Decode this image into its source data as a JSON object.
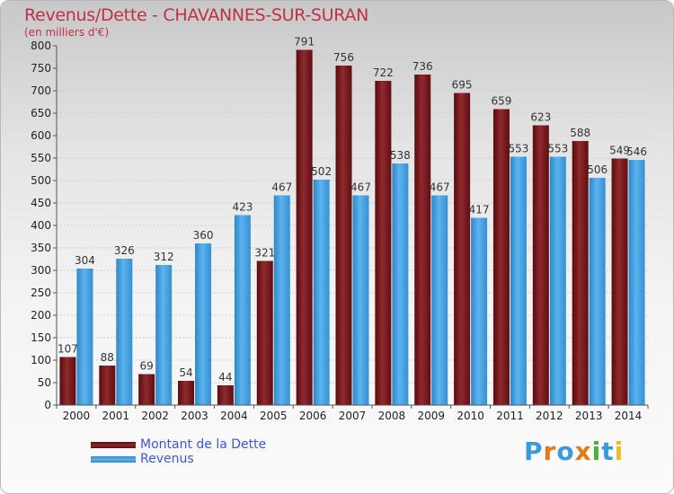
{
  "chart_data": {
    "type": "bar",
    "title": "Revenus/Dette - CHAVANNES-SUR-SURAN",
    "subtitle": "(en milliers d'€)",
    "xlabel": "",
    "ylabel": "",
    "ylim": [
      0,
      800
    ],
    "yticks": [
      0,
      50,
      100,
      150,
      200,
      250,
      300,
      350,
      400,
      450,
      500,
      550,
      600,
      650,
      700,
      750,
      800
    ],
    "categories": [
      "2000",
      "2001",
      "2002",
      "2003",
      "2004",
      "2005",
      "2006",
      "2007",
      "2008",
      "2009",
      "2010",
      "2011",
      "2012",
      "2013",
      "2014"
    ],
    "series": [
      {
        "name": "Montant de la Dette",
        "color": "#7a1e22",
        "values": [
          107,
          88,
          69,
          54,
          44,
          321,
          791,
          756,
          722,
          736,
          695,
          659,
          623,
          588,
          549
        ]
      },
      {
        "name": "Revenus",
        "color": "#4aa3e0",
        "values": [
          304,
          326,
          312,
          360,
          423,
          467,
          502,
          467,
          538,
          467,
          417,
          553,
          553,
          506,
          546
        ]
      }
    ],
    "legend_position": "bottom-left"
  },
  "logo": {
    "letters": [
      "P",
      "r",
      "o",
      "x",
      "i",
      "t",
      "i"
    ],
    "colors": [
      "#3a9bd8",
      "#e07a1a",
      "#3a9bd8",
      "#e07a1a",
      "#4caf3a",
      "#3a9bd8",
      "#e8c020"
    ]
  }
}
